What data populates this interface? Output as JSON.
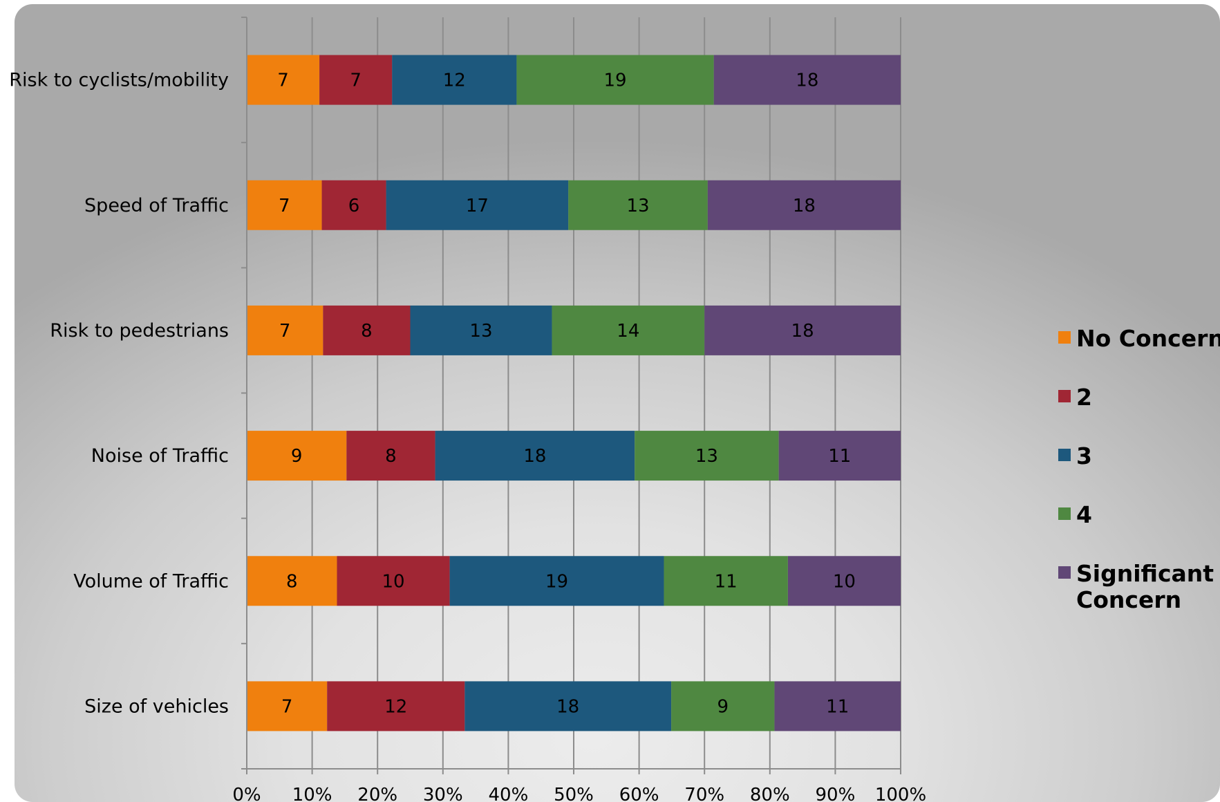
{
  "chart_data": {
    "type": "bar",
    "orientation": "horizontal",
    "stacked": "percent",
    "title": "",
    "xlabel": "",
    "ylabel": "",
    "xlim": [
      0,
      100
    ],
    "x_ticks": [
      "0%",
      "10%",
      "20%",
      "30%",
      "40%",
      "50%",
      "60%",
      "70%",
      "80%",
      "90%",
      "100%"
    ],
    "grid": true,
    "legend_position": "right",
    "categories": [
      "Risk to cyclists/mobility",
      "Speed of Traffic",
      "Risk to pedestrians",
      "Noise of Traffic",
      "Volume of Traffic",
      "Size of vehicles"
    ],
    "series": [
      {
        "name": "No Concern",
        "color": "#f0800e",
        "values": [
          7,
          7,
          7,
          9,
          8,
          7
        ]
      },
      {
        "name": "2",
        "color": "#a02634",
        "values": [
          7,
          6,
          8,
          8,
          10,
          12
        ]
      },
      {
        "name": "3",
        "color": "#1d587d",
        "values": [
          12,
          17,
          13,
          18,
          19,
          18
        ]
      },
      {
        "name": "4",
        "color": "#4f8841",
        "values": [
          19,
          13,
          14,
          13,
          11,
          9
        ]
      },
      {
        "name": "Significant Concern",
        "color": "#604776",
        "values": [
          18,
          18,
          18,
          11,
          10,
          11
        ]
      }
    ]
  }
}
